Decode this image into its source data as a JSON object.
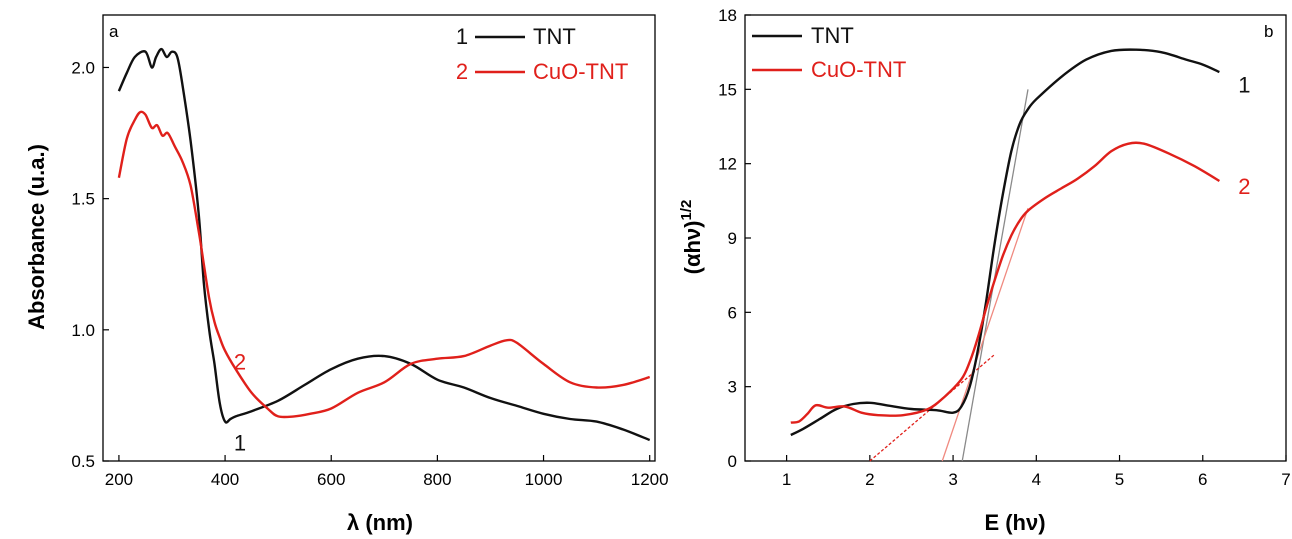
{
  "colors": {
    "tnt": "#111111",
    "cuo_tnt": "#e0201b",
    "axis": "#000000",
    "tangent_gray": "#8a8a8a",
    "tangent_red": "#f08a80"
  },
  "chart_data": [
    {
      "type": "line",
      "panel": "a",
      "xlabel": "λ (nm)",
      "ylabel": "Absorbance (u.a.)",
      "xlim": [
        170,
        1210
      ],
      "ylim": [
        0.5,
        2.2
      ],
      "xticks": [
        200,
        400,
        600,
        800,
        1000,
        1200
      ],
      "yticks": [
        0.5,
        1.0,
        1.5,
        2.0
      ],
      "ytick_labels": [
        "0.5",
        "1.0",
        "1.5",
        "2.0"
      ],
      "grid": false,
      "legend_position": "top-right",
      "series": [
        {
          "name": "TNT",
          "legend_number": "1",
          "color_key": "tnt",
          "x": [
            200,
            215,
            230,
            250,
            262,
            270,
            280,
            290,
            300,
            310,
            320,
            335,
            350,
            360,
            370,
            380,
            390,
            400,
            410,
            420,
            450,
            500,
            550,
            600,
            650,
            700,
            750,
            800,
            850,
            900,
            950,
            1000,
            1050,
            1100,
            1150,
            1200
          ],
          "y": [
            1.91,
            1.98,
            2.04,
            2.06,
            2.0,
            2.04,
            2.07,
            2.04,
            2.06,
            2.04,
            1.93,
            1.72,
            1.45,
            1.18,
            1.0,
            0.87,
            0.72,
            0.65,
            0.66,
            0.67,
            0.69,
            0.73,
            0.79,
            0.85,
            0.89,
            0.9,
            0.87,
            0.81,
            0.78,
            0.74,
            0.71,
            0.68,
            0.66,
            0.65,
            0.62,
            0.58
          ]
        },
        {
          "name": "CuO-TNT",
          "legend_number": "2",
          "color_key": "cuo_tnt",
          "x": [
            200,
            215,
            230,
            240,
            250,
            262,
            272,
            282,
            292,
            305,
            320,
            335,
            350,
            360,
            370,
            380,
            390,
            400,
            420,
            450,
            480,
            500,
            530,
            560,
            600,
            650,
            700,
            750,
            800,
            850,
            900,
            930,
            950,
            1000,
            1050,
            1100,
            1150,
            1200
          ],
          "y": [
            1.58,
            1.73,
            1.8,
            1.83,
            1.82,
            1.77,
            1.78,
            1.74,
            1.75,
            1.7,
            1.64,
            1.55,
            1.38,
            1.25,
            1.12,
            1.03,
            0.97,
            0.92,
            0.85,
            0.76,
            0.7,
            0.67,
            0.67,
            0.68,
            0.7,
            0.76,
            0.8,
            0.87,
            0.89,
            0.9,
            0.94,
            0.96,
            0.95,
            0.87,
            0.8,
            0.78,
            0.79,
            0.82
          ]
        }
      ],
      "annotations": [
        {
          "text": "1",
          "x": 428,
          "y": 0.57,
          "color_key": "tnt"
        },
        {
          "text": "2",
          "x": 428,
          "y": 0.88,
          "color_key": "cuo_tnt"
        }
      ]
    },
    {
      "type": "line",
      "panel": "b",
      "xlabel": "E (hν)",
      "ylabel": "(αhν)",
      "ylabel_superscript": "1/2",
      "xlim": [
        0.5,
        7
      ],
      "ylim": [
        0,
        18
      ],
      "xticks": [
        1,
        2,
        3,
        4,
        5,
        6,
        7
      ],
      "yticks": [
        0,
        3,
        6,
        9,
        12,
        15,
        18
      ],
      "grid": false,
      "legend_position": "top-left",
      "series": [
        {
          "name": "TNT",
          "color_key": "tnt",
          "x": [
            1.05,
            1.2,
            1.4,
            1.6,
            1.8,
            2.0,
            2.2,
            2.5,
            2.8,
            3.0,
            3.1,
            3.2,
            3.3,
            3.4,
            3.5,
            3.6,
            3.7,
            3.8,
            3.9,
            4.0,
            4.3,
            4.6,
            4.9,
            5.2,
            5.5,
            5.8,
            6.0,
            6.2
          ],
          "y": [
            1.05,
            1.3,
            1.7,
            2.1,
            2.3,
            2.35,
            2.25,
            2.1,
            2.05,
            1.95,
            2.2,
            3.0,
            4.5,
            6.5,
            8.8,
            10.8,
            12.5,
            13.6,
            14.2,
            14.6,
            15.5,
            16.2,
            16.55,
            16.6,
            16.5,
            16.2,
            16.0,
            15.7
          ]
        },
        {
          "name": "CuO-TNT",
          "color_key": "cuo_tnt",
          "x": [
            1.05,
            1.15,
            1.25,
            1.35,
            1.5,
            1.7,
            1.9,
            2.1,
            2.4,
            2.7,
            2.9,
            3.1,
            3.2,
            3.3,
            3.4,
            3.5,
            3.6,
            3.7,
            3.8,
            3.9,
            4.1,
            4.3,
            4.5,
            4.7,
            4.9,
            5.1,
            5.3,
            5.6,
            5.9,
            6.2
          ],
          "y": [
            1.55,
            1.6,
            1.9,
            2.25,
            2.15,
            2.2,
            1.95,
            1.85,
            1.85,
            2.1,
            2.6,
            3.3,
            4.0,
            5.0,
            6.2,
            7.3,
            8.3,
            9.1,
            9.7,
            10.1,
            10.6,
            11.0,
            11.4,
            11.9,
            12.5,
            12.8,
            12.8,
            12.4,
            11.9,
            11.3
          ]
        }
      ],
      "tangent_lines": [
        {
          "color_key": "tangent_gray",
          "x": [
            3.11,
            3.9
          ],
          "y": [
            0,
            15.0
          ]
        },
        {
          "color_key": "tangent_red",
          "x": [
            2.87,
            3.9
          ],
          "y": [
            0,
            10.2
          ]
        },
        {
          "color_key": "cuo_tnt",
          "dashed": true,
          "x": [
            2.0,
            3.5
          ],
          "y": [
            0,
            4.3
          ]
        }
      ],
      "annotations": [
        {
          "text": "1",
          "x": 6.5,
          "y": 15.2,
          "color_key": "tnt"
        },
        {
          "text": "2",
          "x": 6.5,
          "y": 11.1,
          "color_key": "cuo_tnt"
        }
      ]
    }
  ]
}
